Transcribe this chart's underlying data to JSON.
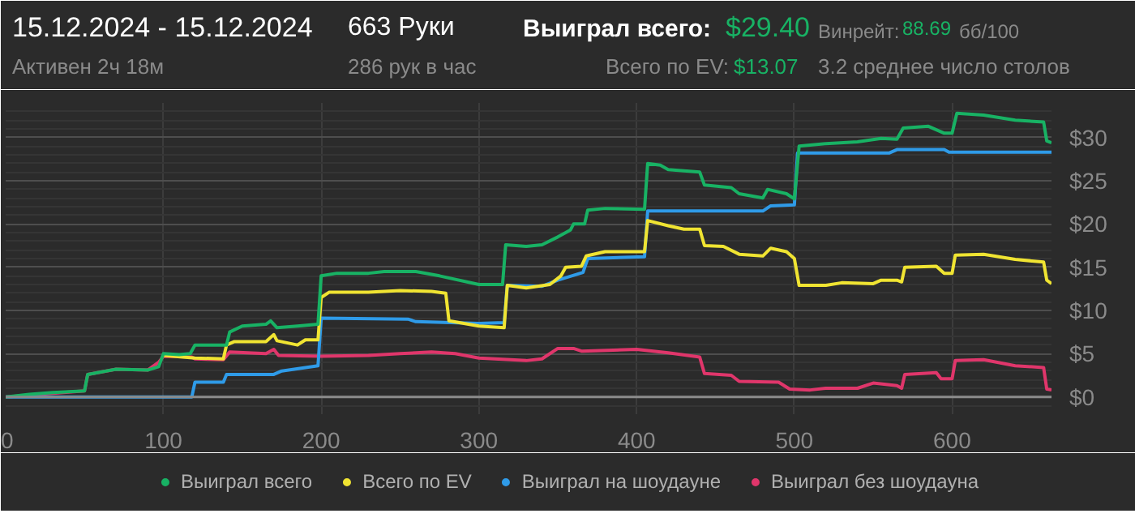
{
  "chart_data": {
    "type": "line",
    "title": "15.12.2024 - 15.12.2024",
    "annotations": [
      "Активен 2ч 18м",
      "663 Руки",
      "286 рук в час",
      "Выиграл всего:",
      "$29.40",
      "Всего по EV:",
      "$13.07",
      "Винрейт:",
      "88.69",
      "бб/100",
      "3.2 среднее число столов"
    ],
    "xlim": [
      0,
      663
    ],
    "xticks": [
      0,
      100,
      200,
      300,
      400,
      500,
      600
    ],
    "ylim": [
      -2,
      34
    ],
    "yticks": [
      {
        "value": 0,
        "label": "$0"
      },
      {
        "value": 5,
        "label": "$5"
      },
      {
        "value": 10,
        "label": "$10"
      },
      {
        "value": 15,
        "label": "$15"
      },
      {
        "value": 20,
        "label": "$20"
      },
      {
        "value": 25,
        "label": "$25"
      },
      {
        "value": 30,
        "label": "$30"
      }
    ],
    "grid": true,
    "legend": "bottom",
    "line_style": "solid",
    "ref_lines": [
      {
        "axis": "y",
        "value": 0,
        "label": null,
        "color": "#8a8a8a"
      }
    ],
    "series": [
      {
        "name": "Выиграл всего",
        "color": "#18b264",
        "x": [
          0,
          15,
          30,
          50,
          52,
          70,
          90,
          97,
          100,
          110,
          117,
          120,
          140,
          142,
          150,
          165,
          168,
          172,
          185,
          198,
          200,
          210,
          230,
          240,
          260,
          275,
          300,
          315,
          317,
          330,
          340,
          350,
          355,
          358,
          360,
          367,
          369,
          380,
          405,
          407,
          415,
          420,
          440,
          443,
          460,
          465,
          480,
          483,
          495,
          500,
          503,
          520,
          540,
          555,
          565,
          569,
          585,
          595,
          600,
          603,
          620,
          640,
          658,
          660,
          663
        ],
        "values": [
          0,
          0.3,
          0.5,
          0.7,
          2.6,
          3.2,
          3.1,
          3.5,
          5.0,
          4.9,
          5.0,
          6.0,
          6.0,
          7.5,
          8.2,
          8.4,
          8.8,
          8.0,
          8.2,
          8.4,
          14.0,
          14.3,
          14.3,
          14.5,
          14.5,
          14.0,
          13.0,
          13.0,
          17.6,
          17.4,
          17.6,
          18.5,
          19.0,
          19.3,
          20.0,
          20.0,
          21.6,
          21.8,
          21.7,
          27.0,
          26.8,
          26.3,
          26.0,
          24.5,
          24.2,
          23.5,
          23.0,
          24.0,
          23.5,
          22.9,
          29.0,
          29.3,
          29.5,
          29.9,
          29.8,
          31.1,
          31.3,
          30.5,
          30.5,
          32.8,
          32.6,
          32.0,
          31.8,
          29.6,
          29.4
        ]
      },
      {
        "name": "Всего по EV",
        "color": "#f0e432",
        "x": [
          100,
          120,
          138,
          140,
          145,
          165,
          170,
          172,
          185,
          190,
          198,
          200,
          205,
          230,
          250,
          270,
          279,
          281,
          300,
          316,
          318,
          330,
          345,
          352,
          355,
          365,
          368,
          380,
          405,
          407,
          420,
          430,
          440,
          443,
          455,
          465,
          480,
          485,
          495,
          500,
          503,
          520,
          530,
          550,
          555,
          565,
          568,
          570,
          590,
          595,
          600,
          602,
          620,
          640,
          658,
          660,
          663
        ],
        "values": [
          4.8,
          4.5,
          4.4,
          6.0,
          6.4,
          6.4,
          7.2,
          6.5,
          6.0,
          6.6,
          6.6,
          11.5,
          12.1,
          12.1,
          12.3,
          12.2,
          12.0,
          8.8,
          8.2,
          8.0,
          12.9,
          12.6,
          13.0,
          14.0,
          15.0,
          15.1,
          16.3,
          16.8,
          16.8,
          20.4,
          19.8,
          19.4,
          19.4,
          17.5,
          17.4,
          16.5,
          16.3,
          17.2,
          16.8,
          16.0,
          12.9,
          12.9,
          13.2,
          13.1,
          13.5,
          13.5,
          13.3,
          15.0,
          15.1,
          14.3,
          14.3,
          16.4,
          16.5,
          15.9,
          15.6,
          13.5,
          13.1
        ]
      },
      {
        "name": "Выиграл на шоудауне",
        "color": "#2f9be8",
        "x": [
          0,
          50,
          118,
          120,
          138,
          140,
          170,
          175,
          198,
          200,
          255,
          260,
          300,
          316,
          318,
          340,
          350,
          366,
          369,
          405,
          407,
          480,
          485,
          500,
          502,
          560,
          565,
          595,
          598,
          663
        ],
        "values": [
          0,
          0,
          0,
          1.7,
          1.7,
          2.6,
          2.6,
          3.0,
          3.6,
          9.1,
          9.0,
          8.7,
          8.5,
          8.6,
          12.9,
          12.8,
          13.5,
          14.4,
          16.0,
          16.2,
          21.5,
          21.5,
          22.1,
          22.2,
          28.2,
          28.2,
          28.6,
          28.6,
          28.3,
          28.3
        ]
      },
      {
        "name": "Выиграл без шоудауна",
        "color": "#e0366b",
        "x": [
          0,
          50,
          52,
          70,
          90,
          97,
          100,
          118,
          120,
          138,
          142,
          165,
          170,
          173,
          200,
          230,
          250,
          270,
          285,
          300,
          330,
          340,
          350,
          360,
          365,
          400,
          420,
          440,
          443,
          460,
          465,
          490,
          497,
          510,
          520,
          540,
          550,
          565,
          568,
          570,
          590,
          593,
          600,
          602,
          620,
          640,
          658,
          660,
          663
        ],
        "values": [
          0,
          0.7,
          2.6,
          3.2,
          3.1,
          4.0,
          4.7,
          4.6,
          4.4,
          4.3,
          5.2,
          5.0,
          5.5,
          4.8,
          4.7,
          4.8,
          5.0,
          5.2,
          5.0,
          4.5,
          4.2,
          4.4,
          5.6,
          5.6,
          5.3,
          5.5,
          5.1,
          4.6,
          2.7,
          2.5,
          1.8,
          1.7,
          0.9,
          0.8,
          1.0,
          1.0,
          1.6,
          1.3,
          1.0,
          2.6,
          2.8,
          2.1,
          2.1,
          4.2,
          4.3,
          3.6,
          3.4,
          0.9,
          0.8
        ]
      }
    ]
  }
}
